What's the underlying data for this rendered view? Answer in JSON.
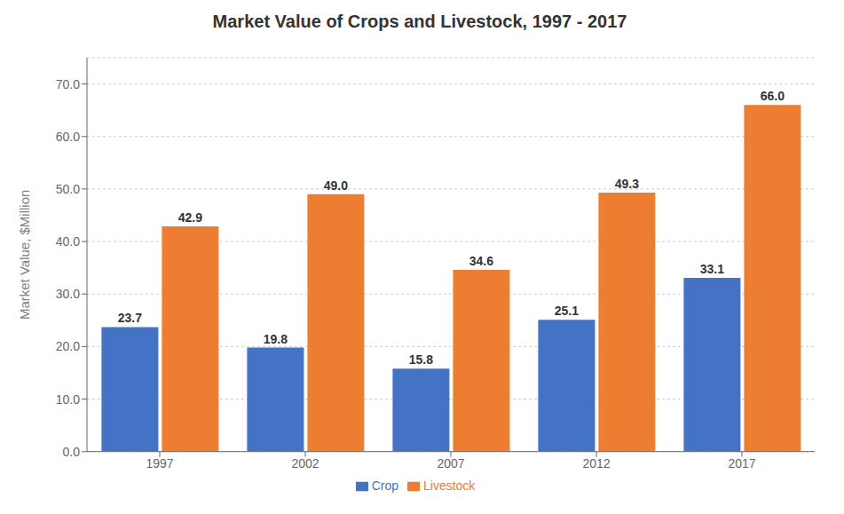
{
  "chart_data": {
    "type": "bar",
    "title": "Market Value of Crops and Livestock, 1997 - 2017",
    "ylabel": "Market Value, $Million",
    "categories": [
      "1997",
      "2002",
      "2007",
      "2012",
      "2017"
    ],
    "series": [
      {
        "name": "Crop",
        "color": "#4472C4",
        "values": [
          23.7,
          19.8,
          15.8,
          25.1,
          33.1
        ],
        "value_labels": [
          "23.7",
          "19.8",
          "15.8",
          "25.1",
          "33.1"
        ]
      },
      {
        "name": "Livestock",
        "color": "#ED7D31",
        "values": [
          42.9,
          49.0,
          34.6,
          49.3,
          66.0
        ],
        "value_labels": [
          "42.9",
          "49.0",
          "34.6",
          "49.3",
          "66.0"
        ]
      }
    ],
    "ylim": [
      0,
      75
    ],
    "yticks": [
      {
        "value": 0,
        "label": "0.0"
      },
      {
        "value": 10,
        "label": "10.0"
      },
      {
        "value": 20,
        "label": "20.0"
      },
      {
        "value": 30,
        "label": "30.0"
      },
      {
        "value": 40,
        "label": "40.0"
      },
      {
        "value": 50,
        "label": "50.0"
      },
      {
        "value": 60,
        "label": "60.0"
      },
      {
        "value": 70,
        "label": "70.0"
      }
    ],
    "grid": true,
    "legend": "bottom",
    "data_labels": true
  }
}
